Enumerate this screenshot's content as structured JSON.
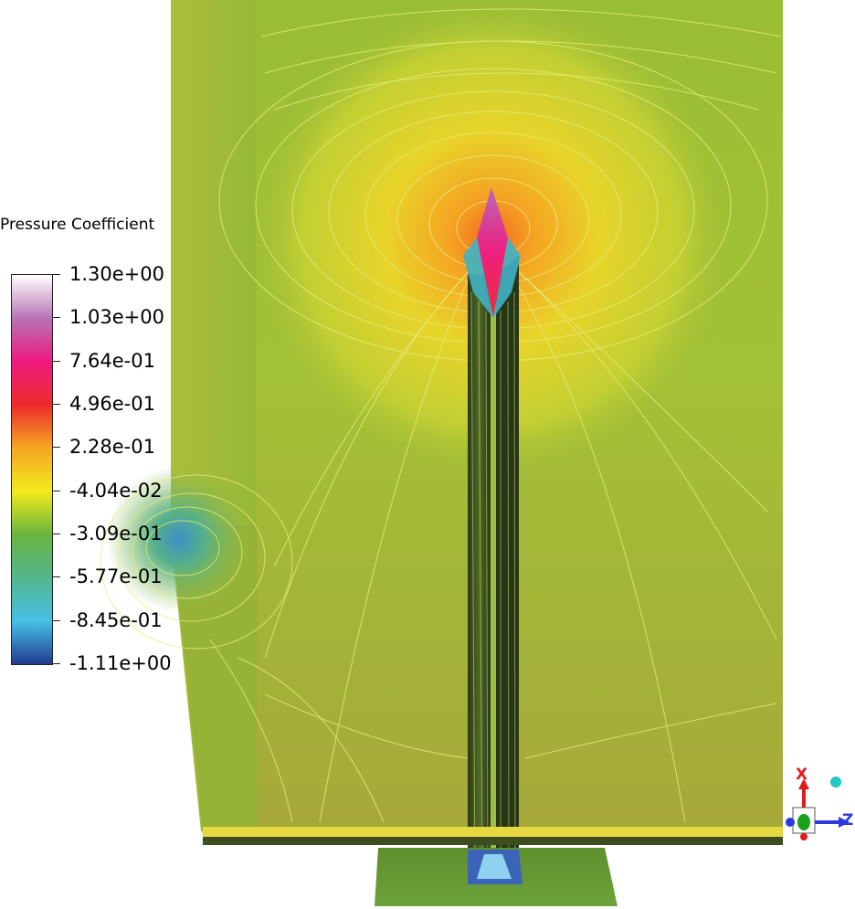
{
  "legend": {
    "title": "Pressure Coefficient",
    "ticks": [
      "1.30e+00",
      "1.03e+00",
      "7.64e-01",
      "4.96e-01",
      "2.28e-01",
      "-4.04e-02",
      "-3.09e-01",
      "-5.77e-01",
      "-8.45e-01",
      "-1.11e+00"
    ],
    "colors": [
      "#ffffff",
      "#b774b4",
      "#ee1a80",
      "#ee2a2a",
      "#f5a623",
      "#f2ea1c",
      "#69b53e",
      "#53b58c",
      "#47c1e6",
      "#223a92"
    ]
  },
  "axes": {
    "x_label": "X",
    "z_label": "Z",
    "x_color": "#e21a1a",
    "z_color": "#2b3be0",
    "y_color": "#1aa11a"
  },
  "surface_colors": {
    "body": "#9bbf34",
    "body_upper": "#bfcf3c",
    "stagnation": "#ee2a6a",
    "fin_shadow": "#1f2a14",
    "contour_line": "#e6ee7a"
  }
}
